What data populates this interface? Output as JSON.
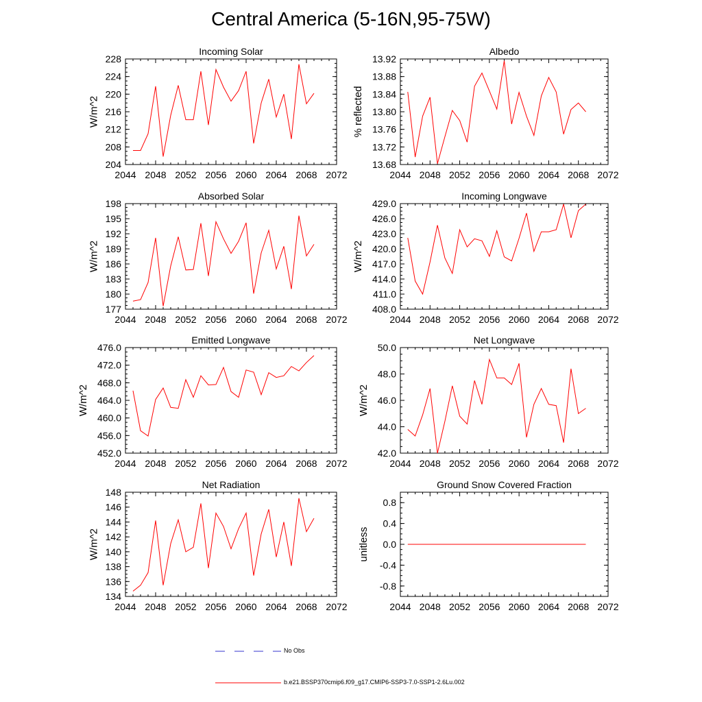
{
  "title": "Central America (5-16N,95-75W)",
  "colors": {
    "model_line": "#ff0000",
    "obs_line": "#0000cc",
    "axis": "#000000"
  },
  "legend": {
    "obs_label": "No Obs",
    "model_label": "b.e21.BSSP370cmip6.f09_g17.CMIP6-SSP3-7.0-SSP1-2.6Lu.002"
  },
  "chart_data": [
    {
      "type": "line",
      "title": "Incoming Solar",
      "xlabel": "",
      "ylabel": "W/m^2",
      "xlim": [
        2044,
        2072
      ],
      "xticks": [
        "2044",
        "2048",
        "2052",
        "2056",
        "2060",
        "2064",
        "2068",
        "2072"
      ],
      "ylim": [
        204,
        228
      ],
      "yticks": [
        "204",
        "208",
        "212",
        "216",
        "220",
        "224",
        "228"
      ],
      "series": [
        {
          "x": [
            2045,
            2046,
            2047,
            2048,
            2049,
            2050,
            2051,
            2052,
            2053,
            2054,
            2055,
            2056,
            2057,
            2058,
            2059,
            2060,
            2061,
            2062,
            2063,
            2064,
            2065,
            2066,
            2067,
            2068,
            2069
          ],
          "values": [
            207.2,
            207.2,
            211.0,
            221.8,
            205.8,
            215.2,
            222.0,
            214.2,
            214.2,
            225.2,
            213.0,
            225.6,
            221.6,
            218.4,
            220.8,
            225.2,
            208.8,
            218.0,
            223.4,
            214.8,
            220.0,
            209.8,
            226.8,
            217.8,
            220.2
          ]
        }
      ]
    },
    {
      "type": "line",
      "title": "Albedo",
      "xlabel": "",
      "ylabel": "% reflected",
      "xlim": [
        2044,
        2072
      ],
      "xticks": [
        "2044",
        "2048",
        "2052",
        "2056",
        "2060",
        "2064",
        "2068",
        "2072"
      ],
      "ylim": [
        13.68,
        13.92
      ],
      "yticks": [
        "13.68",
        "13.72",
        "13.76",
        "13.80",
        "13.84",
        "13.88",
        "13.92"
      ],
      "series": [
        {
          "x": [
            2045,
            2046,
            2047,
            2048,
            2049,
            2050,
            2051,
            2052,
            2053,
            2054,
            2055,
            2056,
            2057,
            2058,
            2059,
            2060,
            2061,
            2062,
            2063,
            2064,
            2065,
            2066,
            2067,
            2068,
            2069
          ],
          "values": [
            13.845,
            13.697,
            13.79,
            13.833,
            13.682,
            13.743,
            13.803,
            13.78,
            13.731,
            13.858,
            13.888,
            13.847,
            13.806,
            13.916,
            13.772,
            13.844,
            13.79,
            13.746,
            13.836,
            13.878,
            13.845,
            13.749,
            13.805,
            13.82,
            13.8
          ]
        }
      ]
    },
    {
      "type": "line",
      "title": "Absorbed Solar",
      "xlabel": "",
      "ylabel": "W/m^2",
      "xlim": [
        2044,
        2072
      ],
      "xticks": [
        "2044",
        "2048",
        "2052",
        "2056",
        "2060",
        "2064",
        "2068",
        "2072"
      ],
      "ylim": [
        177,
        198
      ],
      "yticks": [
        "177",
        "180",
        "183",
        "186",
        "189",
        "192",
        "195",
        "198"
      ],
      "series": [
        {
          "x": [
            2045,
            2046,
            2047,
            2048,
            2049,
            2050,
            2051,
            2052,
            2053,
            2054,
            2055,
            2056,
            2057,
            2058,
            2059,
            2060,
            2061,
            2062,
            2063,
            2064,
            2065,
            2066,
            2067,
            2068,
            2069
          ],
          "values": [
            178.6,
            178.9,
            182.3,
            191.2,
            177.6,
            185.6,
            191.4,
            184.8,
            184.9,
            194.1,
            183.6,
            194.4,
            191.0,
            188.1,
            190.5,
            194.2,
            180.1,
            188.2,
            192.7,
            185.0,
            189.5,
            181.0,
            195.6,
            187.6,
            189.9
          ]
        }
      ]
    },
    {
      "type": "line",
      "title": "Incoming Longwave",
      "xlabel": "",
      "ylabel": "W/m^2",
      "xlim": [
        2044,
        2072
      ],
      "xticks": [
        "2044",
        "2048",
        "2052",
        "2056",
        "2060",
        "2064",
        "2068",
        "2072"
      ],
      "ylim": [
        408,
        429
      ],
      "yticks": [
        "408.0",
        "411.0",
        "414.0",
        "417.0",
        "420.0",
        "423.0",
        "426.0",
        "429.0"
      ],
      "series": [
        {
          "x": [
            2045,
            2046,
            2047,
            2048,
            2049,
            2050,
            2051,
            2052,
            2053,
            2054,
            2055,
            2056,
            2057,
            2058,
            2059,
            2060,
            2061,
            2062,
            2063,
            2064,
            2065,
            2066,
            2067,
            2068,
            2069
          ],
          "values": [
            422.2,
            413.6,
            411.0,
            417.4,
            424.7,
            418.2,
            415.1,
            423.8,
            420.4,
            422.0,
            421.6,
            418.5,
            423.6,
            418.4,
            417.6,
            422.1,
            427.1,
            419.5,
            423.4,
            423.4,
            423.8,
            428.9,
            422.2,
            427.6,
            428.9
          ]
        }
      ]
    },
    {
      "type": "line",
      "title": "Emitted Longwave",
      "xlabel": "",
      "ylabel": "W/m^2",
      "xlim": [
        2044,
        2072
      ],
      "xticks": [
        "2044",
        "2048",
        "2052",
        "2056",
        "2060",
        "2064",
        "2068",
        "2072"
      ],
      "ylim": [
        452,
        476
      ],
      "yticks": [
        "452.0",
        "456.0",
        "460.0",
        "464.0",
        "468.0",
        "472.0",
        "476.0"
      ],
      "series": [
        {
          "x": [
            2045,
            2046,
            2047,
            2048,
            2049,
            2050,
            2051,
            2052,
            2053,
            2054,
            2055,
            2056,
            2057,
            2058,
            2059,
            2060,
            2061,
            2062,
            2063,
            2064,
            2065,
            2066,
            2067,
            2068,
            2069
          ],
          "values": [
            466.2,
            457.1,
            455.9,
            464.2,
            466.8,
            462.4,
            462.2,
            468.7,
            464.7,
            469.6,
            467.5,
            467.6,
            471.5,
            466.0,
            464.7,
            470.9,
            470.4,
            465.3,
            470.3,
            469.2,
            469.6,
            471.7,
            470.7,
            472.6,
            474.2
          ]
        }
      ]
    },
    {
      "type": "line",
      "title": "Net Longwave",
      "xlabel": "",
      "ylabel": "W/m^2",
      "xlim": [
        2044,
        2072
      ],
      "xticks": [
        "2044",
        "2048",
        "2052",
        "2056",
        "2060",
        "2064",
        "2068",
        "2072"
      ],
      "ylim": [
        42,
        50
      ],
      "yticks": [
        "42.0",
        "44.0",
        "46.0",
        "48.0",
        "50.0"
      ],
      "series": [
        {
          "x": [
            2045,
            2046,
            2047,
            2048,
            2049,
            2050,
            2051,
            2052,
            2053,
            2054,
            2055,
            2056,
            2057,
            2058,
            2059,
            2060,
            2061,
            2062,
            2063,
            2064,
            2065,
            2066,
            2067,
            2068,
            2069
          ],
          "values": [
            43.8,
            43.3,
            44.9,
            46.9,
            42.0,
            44.4,
            47.1,
            44.8,
            44.2,
            47.5,
            45.7,
            49.1,
            47.7,
            47.7,
            47.2,
            48.8,
            43.2,
            45.7,
            46.9,
            45.7,
            45.6,
            42.8,
            48.4,
            45.0,
            45.4
          ]
        }
      ]
    },
    {
      "type": "line",
      "title": "Net Radiation",
      "xlabel": "",
      "ylabel": "W/m^2",
      "xlim": [
        2044,
        2072
      ],
      "xticks": [
        "2044",
        "2048",
        "2052",
        "2056",
        "2060",
        "2064",
        "2068",
        "2072"
      ],
      "ylim": [
        134,
        148
      ],
      "yticks": [
        "134",
        "136",
        "138",
        "140",
        "142",
        "144",
        "146",
        "148"
      ],
      "series": [
        {
          "x": [
            2045,
            2046,
            2047,
            2048,
            2049,
            2050,
            2051,
            2052,
            2053,
            2054,
            2055,
            2056,
            2057,
            2058,
            2059,
            2060,
            2061,
            2062,
            2063,
            2064,
            2065,
            2066,
            2067,
            2068,
            2069
          ],
          "values": [
            134.7,
            135.5,
            137.2,
            144.2,
            135.5,
            141.1,
            144.3,
            140.0,
            140.6,
            146.5,
            137.8,
            145.2,
            143.4,
            140.4,
            143.1,
            145.2,
            136.8,
            142.4,
            145.7,
            139.3,
            144.0,
            138.1,
            147.2,
            142.7,
            144.5
          ]
        }
      ]
    },
    {
      "type": "line",
      "title": "Ground Snow Covered Fraction",
      "xlabel": "",
      "ylabel": "unitless",
      "xlim": [
        2044,
        2072
      ],
      "xticks": [
        "2044",
        "2048",
        "2052",
        "2056",
        "2060",
        "2064",
        "2068",
        "2072"
      ],
      "ylim": [
        -1.0,
        1.0
      ],
      "yticks": [
        "-0.8",
        "-0.4",
        "0.0",
        "0.4",
        "0.8"
      ],
      "ytick_values": [
        -0.8,
        -0.4,
        0.0,
        0.4,
        0.8
      ],
      "series": [
        {
          "x": [
            2045,
            2069
          ],
          "values": [
            0.0,
            0.0
          ]
        }
      ]
    }
  ]
}
